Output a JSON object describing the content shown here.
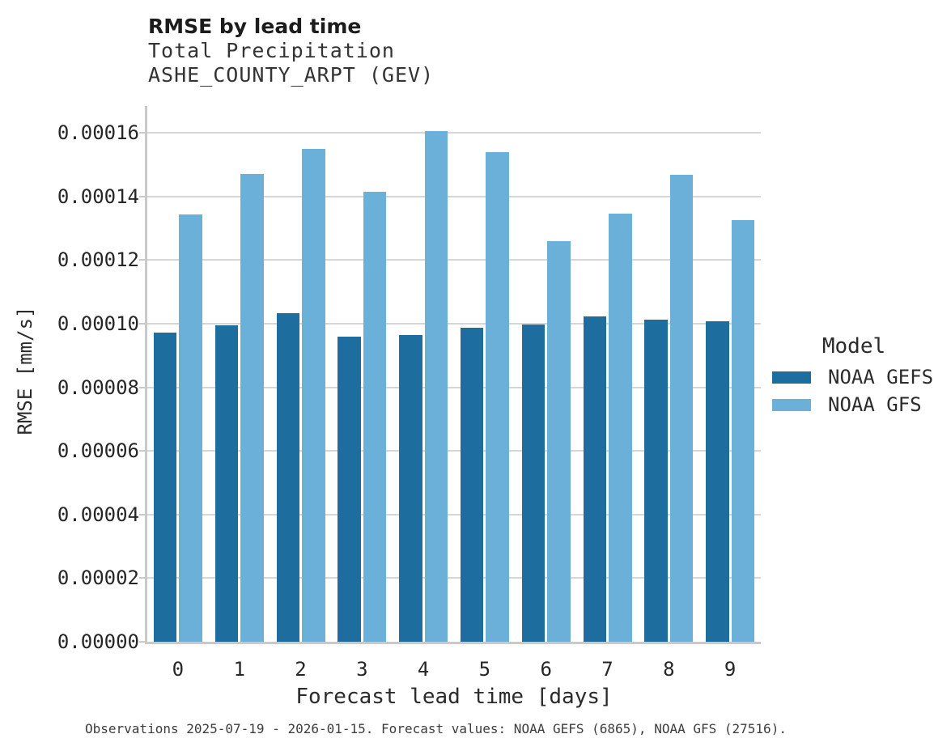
{
  "header": {
    "title": "RMSE by lead time",
    "subtitle_line1": "Total Precipitation",
    "subtitle_line2": "ASHE_COUNTY_ARPT (GEV)"
  },
  "chart_data": {
    "type": "bar",
    "title": "RMSE by lead time",
    "subtitle": [
      "Total Precipitation",
      "ASHE_COUNTY_ARPT (GEV)"
    ],
    "categories": [
      "0",
      "1",
      "2",
      "3",
      "4",
      "5",
      "6",
      "7",
      "8",
      "9"
    ],
    "series": [
      {
        "name": "NOAA GEFS",
        "color": "#1d6e9e",
        "values": [
          9.72e-05,
          9.95e-05,
          0.0001034,
          9.58e-05,
          9.63e-05,
          9.88e-05,
          9.97e-05,
          0.0001022,
          0.0001012,
          0.0001008
        ]
      },
      {
        "name": "NOAA GFS",
        "color": "#6bb0d8",
        "values": [
          0.0001343,
          0.0001471,
          0.0001549,
          0.0001415,
          0.0001606,
          0.0001539,
          0.0001259,
          0.0001345,
          0.0001469,
          0.0001325
        ]
      }
    ],
    "xlabel": "Forecast lead time [days]",
    "ylabel": "RMSE [mm/s]",
    "ylim": [
      0,
      0.0001684
    ],
    "yticks": [
      0.0,
      2e-05,
      4e-05,
      6e-05,
      8e-05,
      0.0001,
      0.00012,
      0.00014,
      0.00016
    ],
    "ytick_labels": [
      "0.00000",
      "0.00002",
      "0.00004",
      "0.00006",
      "0.00008",
      "0.00010",
      "0.00012",
      "0.00014",
      "0.00016"
    ],
    "grid": true,
    "legend_position": "right"
  },
  "legend": {
    "title": "Model",
    "entries": [
      {
        "label": "NOAA GEFS",
        "color": "#1d6e9e"
      },
      {
        "label": "NOAA GFS",
        "color": "#6bb0d8"
      }
    ]
  },
  "footer": {
    "caption": "Observations 2025-07-19 - 2026-01-15. Forecast values: NOAA GEFS (6865), NOAA GFS (27516)."
  },
  "colors": {
    "series_dark": "#1d6e9e",
    "series_light": "#6bb0d8",
    "gridline": "#d6d6d6",
    "spine": "#c9c9c9",
    "background": "#ffffff"
  }
}
